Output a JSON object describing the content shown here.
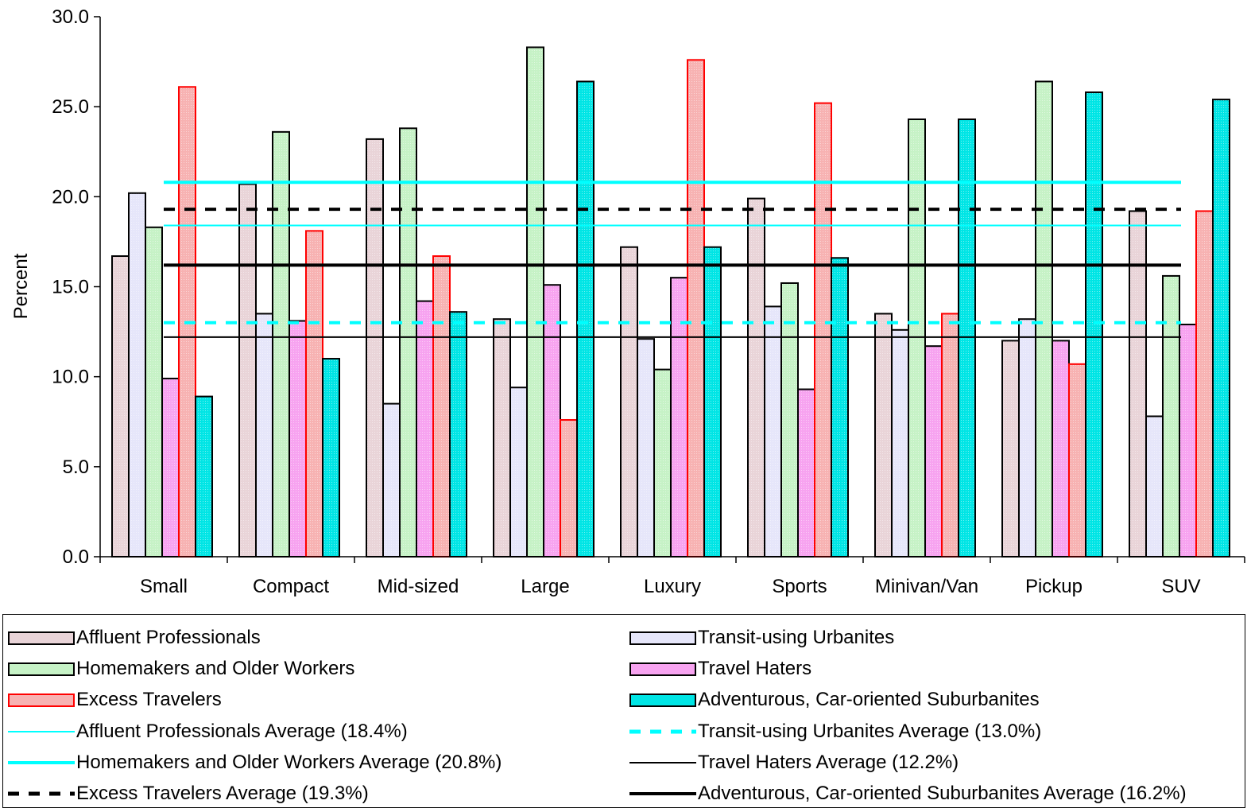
{
  "chart_data": {
    "type": "bar",
    "ylabel": "Percent",
    "xlabel": "",
    "ylim": [
      0,
      30
    ],
    "yticks": [
      "0.0",
      "5.0",
      "10.0",
      "15.0",
      "20.0",
      "25.0",
      "30.0"
    ],
    "grid": false,
    "legend_position": "bottom",
    "categories": [
      "Small",
      "Compact",
      "Mid-sized",
      "Large",
      "Luxury",
      "Sports",
      "Minivan/Van",
      "Pickup",
      "SUV"
    ],
    "series": [
      {
        "name": "Affluent Professionals",
        "color": "#e9d4d8",
        "edge": "#000000",
        "values": [
          16.7,
          20.7,
          23.2,
          13.2,
          17.2,
          19.9,
          13.5,
          12.0,
          19.2
        ]
      },
      {
        "name": "Transit-using Urbanites",
        "color": "#e6e6fa",
        "edge": "#000000",
        "values": [
          20.2,
          13.5,
          8.5,
          9.4,
          12.1,
          13.9,
          12.6,
          13.2,
          7.8
        ]
      },
      {
        "name": "Homemakers and Older Workers",
        "color": "#c6f2c6",
        "edge": "#000000",
        "values": [
          18.3,
          23.6,
          23.8,
          28.3,
          10.4,
          15.2,
          24.3,
          26.4,
          15.6
        ]
      },
      {
        "name": "Travel Haters",
        "color": "#f7a3f0",
        "edge": "#000000",
        "values": [
          9.9,
          13.1,
          14.2,
          15.1,
          15.5,
          9.3,
          11.7,
          12.0,
          12.9
        ]
      },
      {
        "name": "Excess Travelers",
        "color": "#f7b2b2",
        "edge": "#ff0000",
        "values": [
          26.1,
          18.1,
          16.7,
          7.6,
          27.6,
          25.2,
          13.5,
          10.7,
          19.2
        ]
      },
      {
        "name": "Adventurous, Car-oriented Suburbanites",
        "color": "#00e5e5",
        "edge": "#000000",
        "values": [
          8.9,
          11.0,
          13.6,
          26.4,
          17.2,
          16.6,
          24.3,
          25.8,
          25.4
        ]
      }
    ],
    "averages": [
      {
        "name": "Affluent Professionals Average (18.4%)",
        "value": 18.4,
        "color": "#00ffff",
        "style": "thin"
      },
      {
        "name": "Transit-using Urbanites Average (13.0%)",
        "value": 13.0,
        "color": "#00ffff",
        "style": "dashed"
      },
      {
        "name": "Homemakers and Older Workers Average (20.8%)",
        "value": 20.8,
        "color": "#00ffff",
        "style": "thick"
      },
      {
        "name": "Travel Haters Average (12.2%)",
        "value": 12.2,
        "color": "#000000",
        "style": "thin"
      },
      {
        "name": "Excess Travelers Average (19.3%)",
        "value": 19.3,
        "color": "#000000",
        "style": "dashed"
      },
      {
        "name": "Adventurous, Car-oriented Suburbanites Average (16.2%)",
        "value": 16.2,
        "color": "#000000",
        "style": "thick"
      }
    ]
  }
}
